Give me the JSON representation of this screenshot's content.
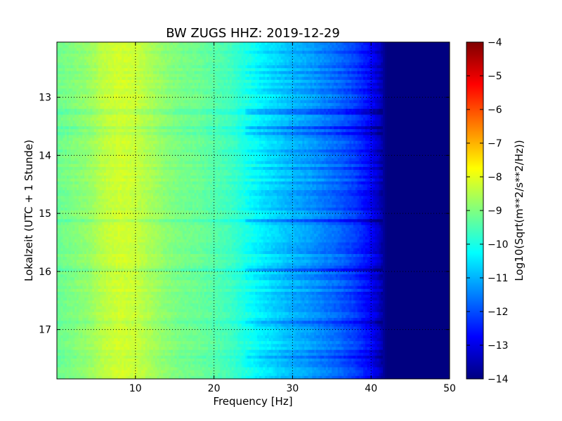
{
  "chart_data": {
    "type": "heatmap",
    "title": "BW ZUGS HHZ: 2019-12-29",
    "xlabel": "Frequency [Hz]",
    "ylabel": "Lokalzeit (UTC + 1 Stunde)",
    "xlim": [
      0,
      50
    ],
    "ylim": [
      12.05,
      17.85
    ],
    "y_inverted": true,
    "x_ticks": [
      "10",
      "20",
      "30",
      "40",
      "50"
    ],
    "y_ticks": [
      "13",
      "14",
      "15",
      "16",
      "17"
    ],
    "grid": true,
    "colormap": "jet",
    "colorbar": {
      "label": "Log10(Sqrt(m**2/s**2/Hz))",
      "range": [
        -14,
        -4
      ],
      "ticks": [
        "-4",
        "-5",
        "-6",
        "-7",
        "-8",
        "-9",
        "-10",
        "-11",
        "-12",
        "-13",
        "-14"
      ]
    },
    "frequency_hz": [
      0,
      2,
      4,
      6,
      8,
      10,
      12,
      14,
      16,
      18,
      20,
      22,
      24,
      26,
      28,
      30,
      32,
      34,
      36,
      38,
      40,
      41,
      42,
      44,
      46,
      48,
      50
    ],
    "log10_amplitude": [
      -9.2,
      -9.0,
      -8.8,
      -8.4,
      -8.2,
      -8.3,
      -8.6,
      -8.9,
      -9.1,
      -9.2,
      -9.4,
      -9.6,
      -10.0,
      -10.4,
      -10.7,
      -11.0,
      -11.2,
      -11.5,
      -11.8,
      -12.2,
      -12.8,
      -13.3,
      -14.0,
      -14.0,
      -14.0,
      -14.0,
      -14.0
    ]
  }
}
